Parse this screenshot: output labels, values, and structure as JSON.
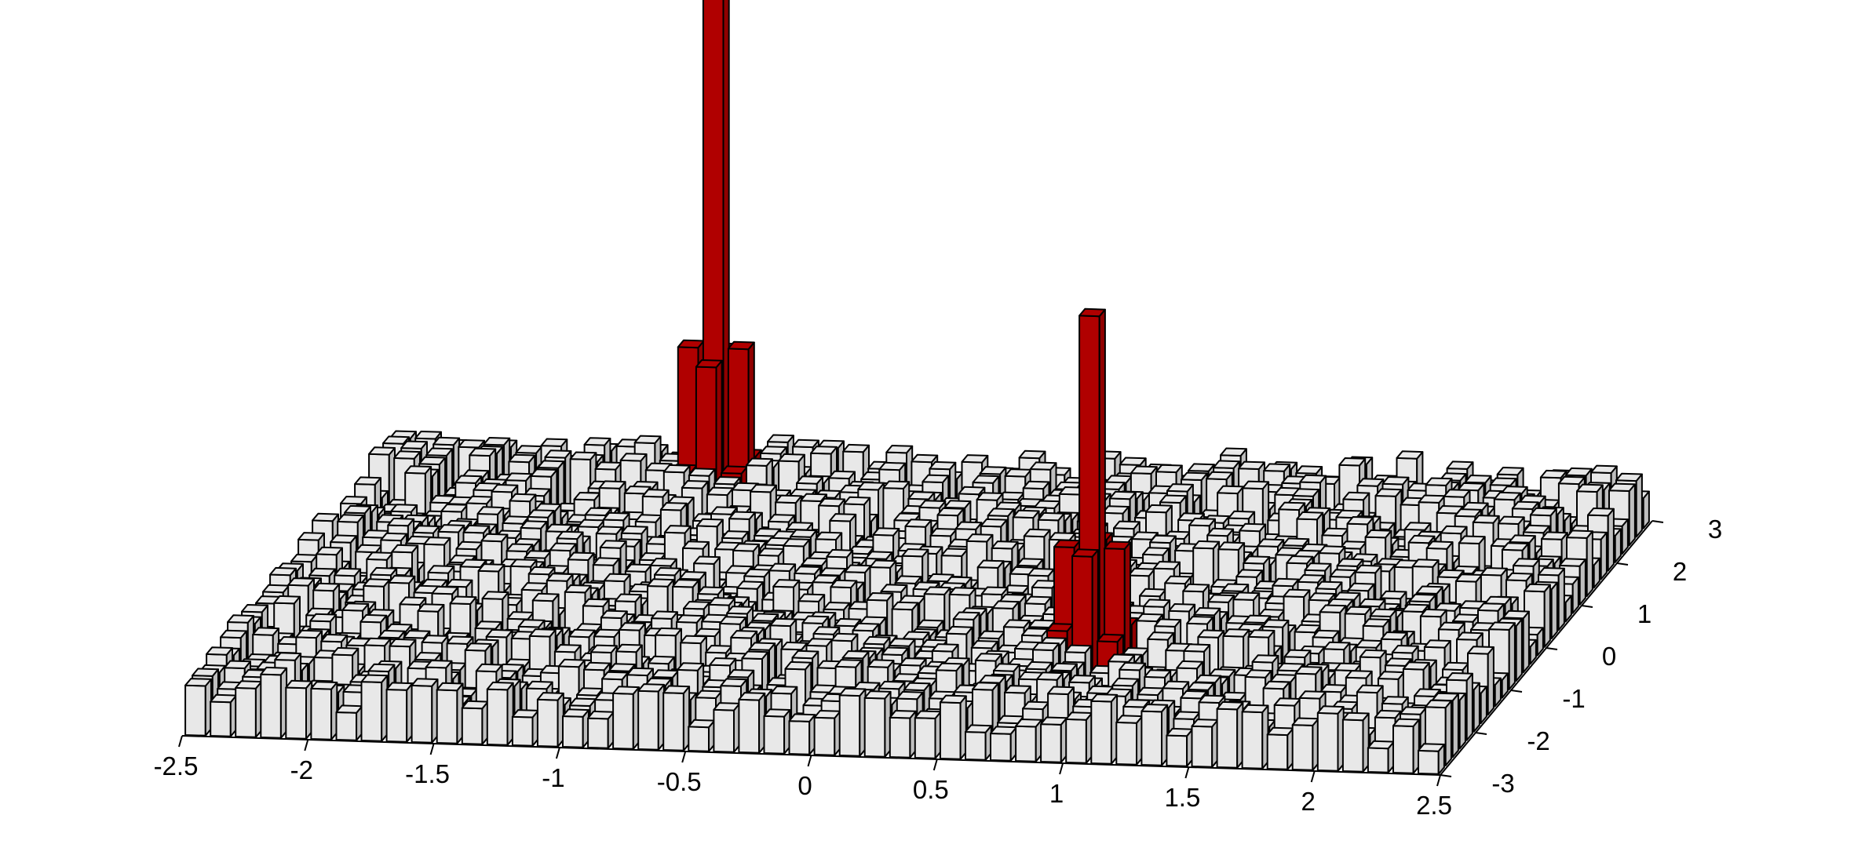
{
  "chart_data": {
    "type": "3d-bar-histogram",
    "title": "",
    "xlabel": "",
    "ylabel": "",
    "zlabel": "",
    "x_ticks": [
      "-2.5",
      "-2",
      "-1.5",
      "-1",
      "-0.5",
      "0",
      "0.5",
      "1",
      "1.5",
      "2",
      "2.5"
    ],
    "y_ticks": [
      "-3",
      "-2",
      "-1",
      "0",
      "1",
      "2",
      "3"
    ],
    "xlim": [
      -2.5,
      2.5
    ],
    "ylim": [
      -3,
      3
    ],
    "zlim": [
      0,
      1
    ],
    "grid_x_bins": 50,
    "grid_y_bins": 30,
    "background_level_range": [
      0.0,
      0.12
    ],
    "colors": {
      "background_bar": "#e8e8e8",
      "peak_bar": "#b00000",
      "edge": "#000000"
    },
    "peaks": [
      {
        "name": "",
        "x": -1.2,
        "y": 2.6,
        "bars": [
          {
            "dx": 0,
            "dy": 0,
            "z": 1.0
          },
          {
            "dx": -1,
            "dy": 0,
            "z": 0.32
          },
          {
            "dx": 1,
            "dy": 0,
            "z": 0.32
          },
          {
            "dx": 0,
            "dy": -1,
            "z": 0.3
          },
          {
            "dx": 0,
            "dy": 1,
            "z": 0.3
          },
          {
            "dx": -1,
            "dy": -1,
            "z": 0.1
          },
          {
            "dx": 1,
            "dy": 1,
            "z": 0.1
          },
          {
            "dx": -1,
            "dy": 1,
            "z": 0.1
          },
          {
            "dx": 1,
            "dy": -1,
            "z": 0.1
          }
        ]
      },
      {
        "name": "",
        "x": 0.85,
        "y": -1.2,
        "bars": [
          {
            "dx": 0,
            "dy": 0,
            "z": 0.7
          },
          {
            "dx": -1,
            "dy": 0,
            "z": 0.26
          },
          {
            "dx": 1,
            "dy": 0,
            "z": 0.26
          },
          {
            "dx": 0,
            "dy": -1,
            "z": 0.26
          },
          {
            "dx": 0,
            "dy": 1,
            "z": 0.26
          },
          {
            "dx": -1,
            "dy": -1,
            "z": 0.1
          },
          {
            "dx": 1,
            "dy": 1,
            "z": 0.1
          },
          {
            "dx": -1,
            "dy": 1,
            "z": 0.1
          },
          {
            "dx": 1,
            "dy": -1,
            "z": 0.1
          }
        ]
      }
    ],
    "grid": false,
    "legend": "none"
  }
}
